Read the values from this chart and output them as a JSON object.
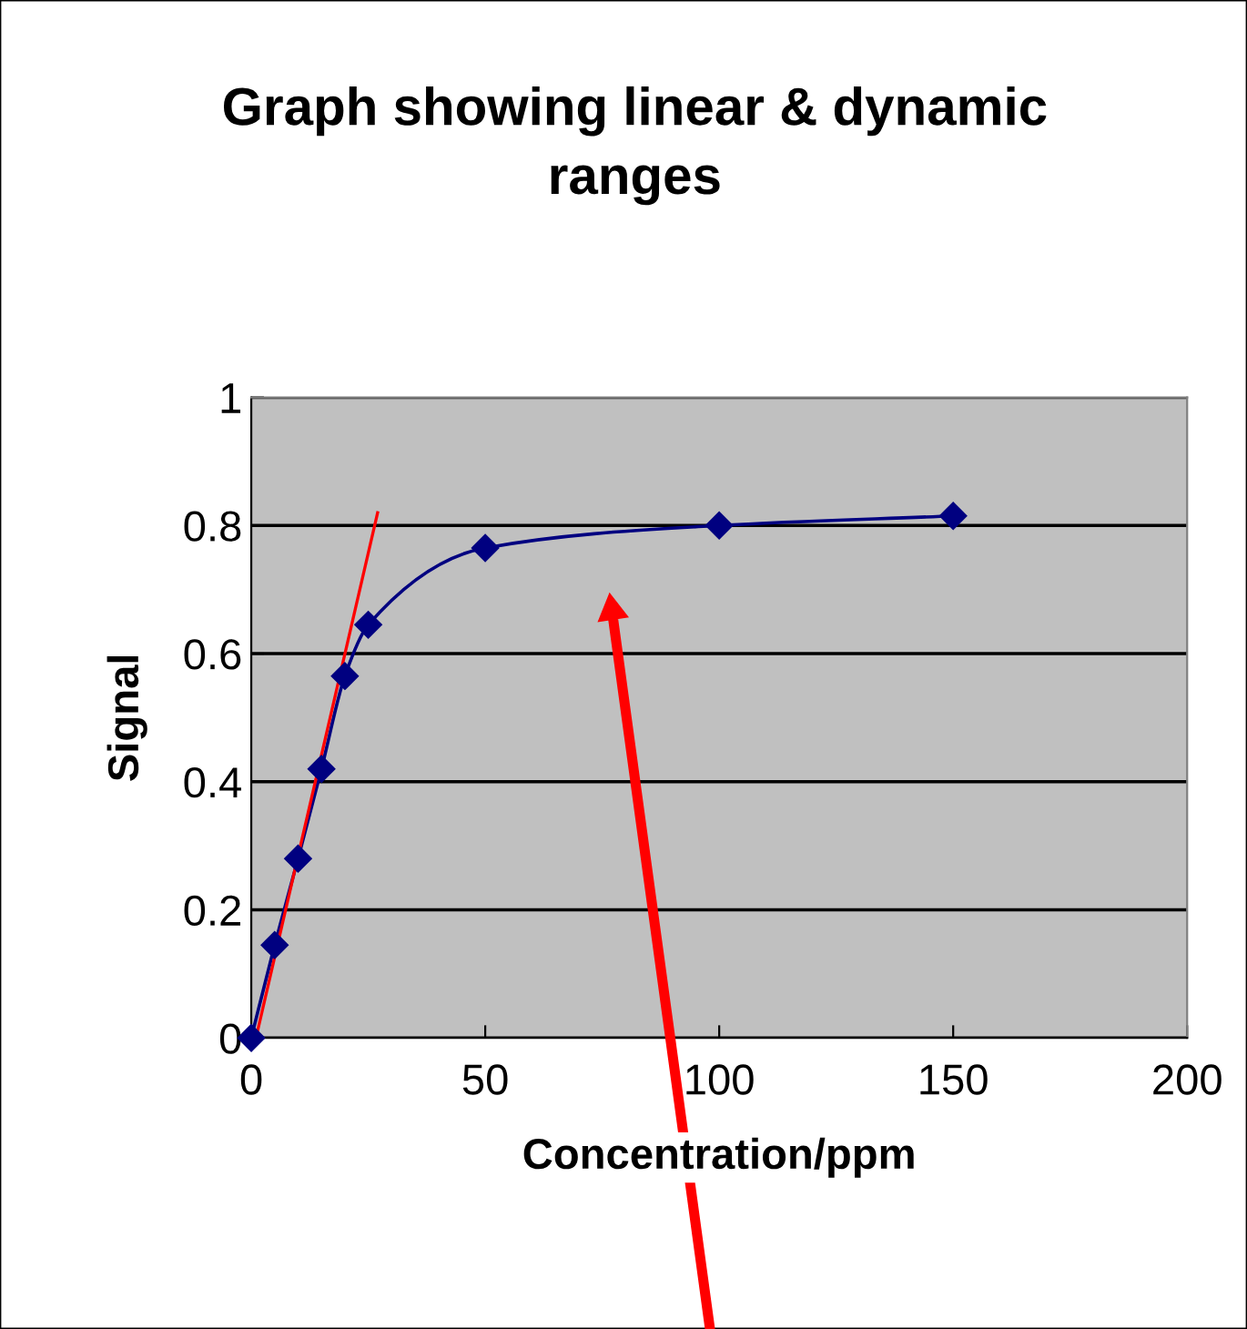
{
  "chart_data": {
    "type": "line",
    "title": "Graph showing linear & dynamic ranges",
    "xlabel": "Concentration/ppm",
    "ylabel": "Signal",
    "x": [
      0,
      5,
      10,
      15,
      20,
      25,
      50,
      100,
      150
    ],
    "series": [
      {
        "color": "#000080",
        "values": [
          0,
          0.145,
          0.28,
          0.42,
          0.565,
          0.645,
          0.765,
          0.8,
          0.815
        ],
        "marker": "diamond"
      },
      {
        "type": "line",
        "color": "#ff0000",
        "x": [
          1,
          27
        ],
        "values": [
          0,
          0.82
        ],
        "marker": "none"
      }
    ],
    "xlim": [
      0,
      200
    ],
    "xticks": [
      0,
      50,
      100,
      150,
      200
    ],
    "ylim": [
      0,
      1
    ],
    "yticks": [
      0,
      0.2,
      0.4,
      0.6,
      0.8,
      1
    ],
    "grid": "y",
    "legend": false
  }
}
